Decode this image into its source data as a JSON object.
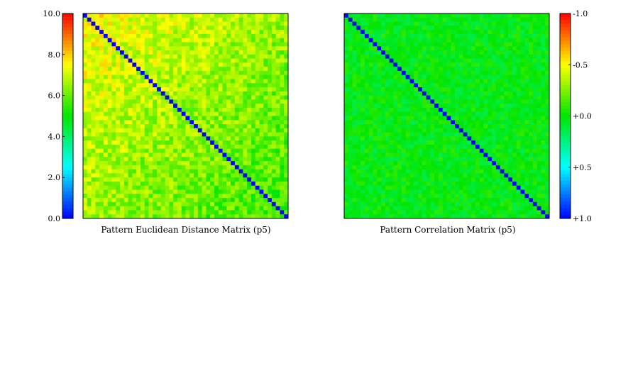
{
  "chart_data": [
    {
      "type": "heatmap",
      "title": "Pattern Euclidean Distance Matrix (p5)",
      "matrix_size": 50,
      "diagonal_value": 0.0,
      "typical_off_diagonal": {
        "upper_left_region": 7.5,
        "center_region": 6.5,
        "lower_right_region": 5.5,
        "range": [
          4.8,
          8.3
        ]
      },
      "colorbar": {
        "position": "left",
        "ticks": [
          "0.0",
          "2.0",
          "4.0",
          "6.0",
          "8.0",
          "10.0"
        ],
        "range": [
          0.0,
          10.0
        ],
        "colormap": "blue-cyan-green-yellow-red (low to high)"
      }
    },
    {
      "type": "heatmap",
      "title": "Pattern Correlation Matrix (p5)",
      "matrix_size": 50,
      "diagonal_value": 1.0,
      "typical_off_diagonal": {
        "value": 0.0,
        "range": [
          -0.15,
          0.25
        ]
      },
      "colorbar": {
        "position": "right",
        "ticks": [
          "+1.0",
          "+0.5",
          "+0.0",
          "-0.5",
          "-1.0"
        ],
        "range": [
          1.0,
          -1.0
        ],
        "colormap": "red (-1) to yellow to green (0) to cyan to blue (+1)"
      }
    }
  ]
}
